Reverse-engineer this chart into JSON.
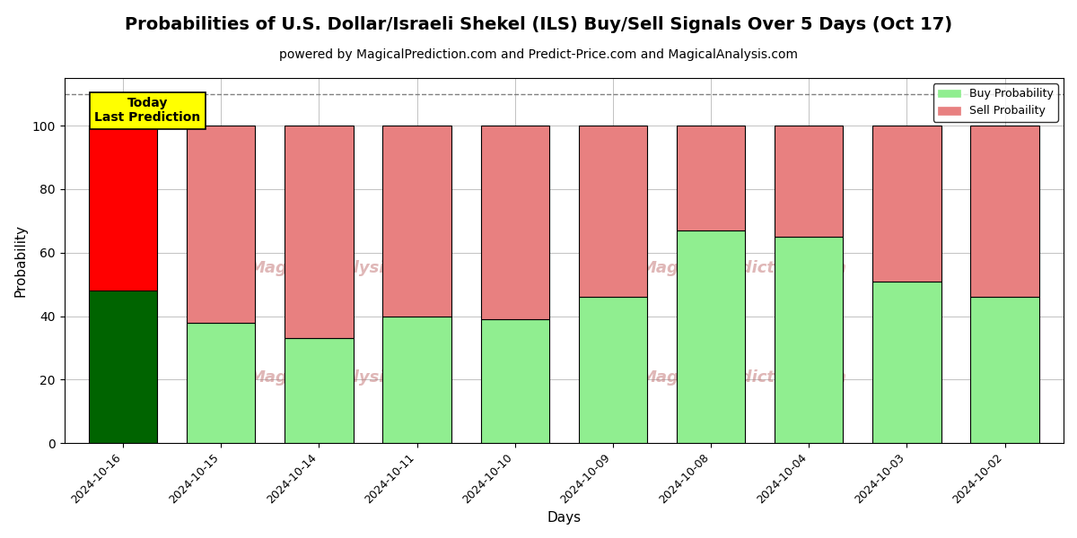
{
  "title": "Probabilities of U.S. Dollar/Israeli Shekel (ILS) Buy/Sell Signals Over 5 Days (Oct 17)",
  "subtitle": "powered by MagicalPrediction.com and Predict-Price.com and MagicalAnalysis.com",
  "xlabel": "Days",
  "ylabel": "Probability",
  "categories": [
    "2024-10-16",
    "2024-10-15",
    "2024-10-14",
    "2024-10-11",
    "2024-10-10",
    "2024-10-09",
    "2024-10-08",
    "2024-10-04",
    "2024-10-03",
    "2024-10-02"
  ],
  "buy_values": [
    48,
    38,
    33,
    40,
    39,
    46,
    67,
    65,
    51,
    46
  ],
  "sell_values": [
    52,
    62,
    67,
    60,
    61,
    54,
    33,
    35,
    49,
    54
  ],
  "buy_colors": [
    "#006400",
    "#90EE90",
    "#90EE90",
    "#90EE90",
    "#90EE90",
    "#90EE90",
    "#90EE90",
    "#90EE90",
    "#90EE90",
    "#90EE90"
  ],
  "sell_colors": [
    "#FF0000",
    "#E88080",
    "#E88080",
    "#E88080",
    "#E88080",
    "#E88080",
    "#E88080",
    "#E88080",
    "#E88080",
    "#E88080"
  ],
  "buy_colors_legend": "#90EE90",
  "sell_colors_legend": "#E88080",
  "today_box_color": "#FFFF00",
  "today_text": "Today\nLast Prediction",
  "ylim": [
    0,
    115
  ],
  "dashed_line_y": 110,
  "legend_buy": "Buy Probability",
  "legend_sell": "Sell Probaility",
  "bg_color": "#FFFFFF",
  "grid_color": "#AAAAAA",
  "title_fontsize": 14,
  "subtitle_fontsize": 10,
  "bar_width": 0.7,
  "edgecolor": "#000000",
  "edgewidth": 0.8
}
